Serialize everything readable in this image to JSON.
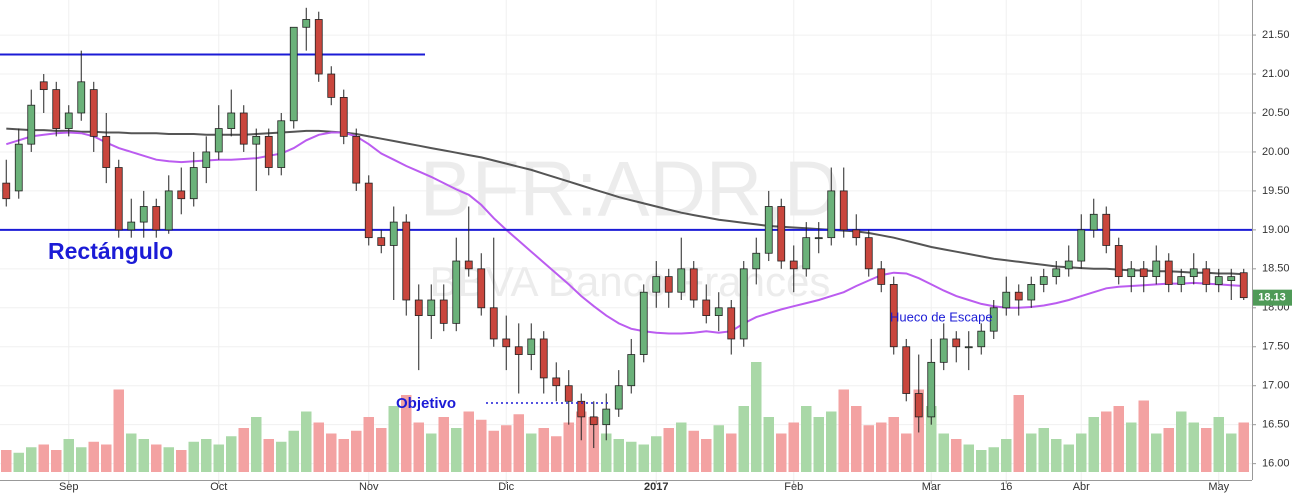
{
  "chart_data": {
    "type": "candlestick",
    "watermark": "BFR:ADR,D",
    "watermark_subtitle": "BBVA Banco Francés",
    "categories": [
      null,
      null,
      null,
      null,
      null,
      "Sep",
      null,
      null,
      null,
      null,
      null,
      null,
      null,
      null,
      null,
      null,
      null,
      "Oct",
      null,
      null,
      null,
      null,
      null,
      null,
      null,
      null,
      null,
      null,
      null,
      "Nov",
      null,
      null,
      null,
      null,
      null,
      null,
      null,
      null,
      null,
      null,
      "Dic",
      null,
      null,
      null,
      null,
      null,
      null,
      null,
      null,
      null,
      null,
      null,
      "2017",
      null,
      null,
      null,
      null,
      null,
      null,
      null,
      null,
      null,
      null,
      "Feb",
      null,
      null,
      null,
      null,
      null,
      null,
      null,
      null,
      null,
      null,
      "Mar",
      null,
      null,
      null,
      null,
      null,
      "16",
      null,
      null,
      null,
      null,
      null,
      "Abr",
      null,
      null,
      null,
      null,
      null,
      null,
      null,
      null,
      null,
      null,
      "May",
      null,
      null
    ],
    "open": [
      19.6,
      19.5,
      20.1,
      20.9,
      20.8,
      20.3,
      20.5,
      20.8,
      20.2,
      19.8,
      19.0,
      19.1,
      19.3,
      19.0,
      19.5,
      19.4,
      19.8,
      20.0,
      20.3,
      20.5,
      20.1,
      20.2,
      19.8,
      20.4,
      21.6,
      21.7,
      21.0,
      20.7,
      20.2,
      19.6,
      18.9,
      18.8,
      19.1,
      18.1,
      17.9,
      18.1,
      17.8,
      18.6,
      18.5,
      18.0,
      17.6,
      17.5,
      17.4,
      17.6,
      17.1,
      17.0,
      16.8,
      16.6,
      16.5,
      16.7,
      17.0,
      17.4,
      18.2,
      18.4,
      18.2,
      18.5,
      18.1,
      17.9,
      18.0,
      17.6,
      18.5,
      18.7,
      19.3,
      18.6,
      18.5,
      18.9,
      18.9,
      19.5,
      19.0,
      18.9,
      18.5,
      18.3,
      17.5,
      16.9,
      16.6,
      17.3,
      17.6,
      17.5,
      17.5,
      17.7,
      18.0,
      18.2,
      18.1,
      18.3,
      18.4,
      18.5,
      18.6,
      19.0,
      19.2,
      18.8,
      18.4,
      18.5,
      18.4,
      18.6,
      18.3,
      18.4,
      18.5,
      18.3,
      18.35,
      18.45
    ],
    "high": [
      19.9,
      20.3,
      20.8,
      21.0,
      20.9,
      20.6,
      21.3,
      20.9,
      20.5,
      19.9,
      19.4,
      19.5,
      19.4,
      19.7,
      19.8,
      20.0,
      20.2,
      20.6,
      20.8,
      20.6,
      20.3,
      20.3,
      20.5,
      21.6,
      21.85,
      21.8,
      21.1,
      20.8,
      20.3,
      19.7,
      19.0,
      19.3,
      19.2,
      18.3,
      18.3,
      18.3,
      18.9,
      19.3,
      18.7,
      18.9,
      17.9,
      17.8,
      17.8,
      17.7,
      17.3,
      17.2,
      16.9,
      16.8,
      16.9,
      17.2,
      17.6,
      18.3,
      18.6,
      18.5,
      18.9,
      18.6,
      18.3,
      18.2,
      18.1,
      18.6,
      18.9,
      19.5,
      19.4,
      18.8,
      19.1,
      19.1,
      19.8,
      19.8,
      19.2,
      19.0,
      18.6,
      18.4,
      17.6,
      17.4,
      17.6,
      17.8,
      17.7,
      17.7,
      17.8,
      18.1,
      18.4,
      18.3,
      18.4,
      18.5,
      18.6,
      18.8,
      19.2,
      19.4,
      19.3,
      18.9,
      18.6,
      18.6,
      18.8,
      18.7,
      18.5,
      18.7,
      18.6,
      18.5,
      18.5,
      18.5
    ],
    "low": [
      19.3,
      19.4,
      20.0,
      20.5,
      20.2,
      20.2,
      20.4,
      20.0,
      19.6,
      18.9,
      18.9,
      18.9,
      18.9,
      18.95,
      19.2,
      19.3,
      19.6,
      19.9,
      20.2,
      20.0,
      19.5,
      19.7,
      19.7,
      20.3,
      21.3,
      20.9,
      20.6,
      20.1,
      19.5,
      18.8,
      18.7,
      18.1,
      17.9,
      17.2,
      17.6,
      17.7,
      17.7,
      18.4,
      17.9,
      17.5,
      17.2,
      16.9,
      17.2,
      16.9,
      16.8,
      16.5,
      16.3,
      16.2,
      16.3,
      16.6,
      16.9,
      17.3,
      18.0,
      18.0,
      18.1,
      18.0,
      17.8,
      17.7,
      17.4,
      17.5,
      18.3,
      18.6,
      18.5,
      18.2,
      18.4,
      18.7,
      18.8,
      18.9,
      18.8,
      18.4,
      18.2,
      17.4,
      16.8,
      16.4,
      16.5,
      17.2,
      17.3,
      17.2,
      17.4,
      17.6,
      17.9,
      17.9,
      18.0,
      18.2,
      18.3,
      18.4,
      18.5,
      18.9,
      18.7,
      18.3,
      18.2,
      18.2,
      18.3,
      18.2,
      18.2,
      18.3,
      18.2,
      18.2,
      18.1,
      18.1
    ],
    "close": [
      19.4,
      20.1,
      20.6,
      20.8,
      20.3,
      20.5,
      20.9,
      20.2,
      19.8,
      19.0,
      19.1,
      19.3,
      19.0,
      19.5,
      19.4,
      19.8,
      20.0,
      20.3,
      20.5,
      20.1,
      20.2,
      19.8,
      20.4,
      21.6,
      21.7,
      21.0,
      20.7,
      20.2,
      19.6,
      18.9,
      18.8,
      19.1,
      18.1,
      17.9,
      18.1,
      17.8,
      18.6,
      18.5,
      18.0,
      17.6,
      17.5,
      17.4,
      17.6,
      17.1,
      17.0,
      16.8,
      16.6,
      16.5,
      16.7,
      17.0,
      17.4,
      18.2,
      18.4,
      18.2,
      18.5,
      18.1,
      17.9,
      18.0,
      17.6,
      18.5,
      18.7,
      19.3,
      18.6,
      18.5,
      18.9,
      18.9,
      19.5,
      19.0,
      18.9,
      18.5,
      18.3,
      17.5,
      16.9,
      16.6,
      17.3,
      17.6,
      17.5,
      17.5,
      17.7,
      18.0,
      18.2,
      18.1,
      18.3,
      18.4,
      18.5,
      18.6,
      19.0,
      19.2,
      18.8,
      18.4,
      18.5,
      18.4,
      18.6,
      18.3,
      18.4,
      18.5,
      18.3,
      18.4,
      18.4,
      18.13
    ],
    "volume": [
      8,
      7,
      9,
      10,
      8,
      12,
      9,
      11,
      10,
      30,
      14,
      12,
      10,
      9,
      8,
      11,
      12,
      10,
      13,
      16,
      20,
      12,
      11,
      15,
      22,
      18,
      14,
      12,
      15,
      20,
      16,
      24,
      28,
      18,
      14,
      20,
      16,
      22,
      19,
      15,
      17,
      21,
      14,
      16,
      13,
      18,
      22,
      20,
      14,
      12,
      11,
      10,
      13,
      16,
      18,
      15,
      12,
      17,
      14,
      24,
      40,
      20,
      14,
      18,
      24,
      20,
      22,
      30,
      24,
      17,
      18,
      20,
      14,
      30,
      24,
      14,
      12,
      10,
      8,
      9,
      12,
      28,
      14,
      16,
      12,
      10,
      14,
      20,
      22,
      24,
      18,
      26,
      14,
      16,
      22,
      18,
      16,
      20,
      14,
      18
    ],
    "up_color": "#6bb27a",
    "down_color": "#c9463d",
    "up_volume_color": "#a9d8a7",
    "down_volume_color": "#f3a2a2",
    "moving_averages": [
      {
        "color": "#555555",
        "values": [
          20.3,
          20.29,
          20.28,
          20.28,
          20.27,
          20.27,
          20.26,
          20.26,
          20.25,
          20.25,
          20.24,
          20.24,
          20.24,
          20.23,
          20.23,
          20.23,
          20.22,
          20.22,
          20.22,
          20.22,
          20.23,
          20.24,
          20.25,
          20.26,
          20.27,
          20.27,
          20.26,
          20.25,
          20.23,
          20.2,
          20.17,
          20.14,
          20.11,
          20.08,
          20.05,
          20.02,
          19.99,
          19.96,
          19.93,
          19.89,
          19.85,
          19.81,
          19.77,
          19.72,
          19.67,
          19.62,
          19.57,
          19.52,
          19.47,
          19.42,
          19.38,
          19.34,
          19.3,
          19.26,
          19.22,
          19.19,
          19.16,
          19.13,
          19.11,
          19.09,
          19.07,
          19.05,
          19.04,
          19.03,
          19.02,
          19.01,
          19.0,
          18.99,
          18.98,
          18.96,
          18.93,
          18.9,
          18.86,
          18.82,
          18.78,
          18.75,
          18.72,
          18.69,
          18.66,
          18.63,
          18.61,
          18.59,
          18.57,
          18.55,
          18.53,
          18.52,
          18.51,
          18.5,
          18.5,
          18.49,
          18.48,
          18.48,
          18.47,
          18.47,
          18.46,
          18.45,
          18.45,
          18.44,
          18.44,
          18.43
        ]
      },
      {
        "color": "#bb5cf0",
        "values": [
          20.1,
          20.15,
          20.2,
          20.22,
          20.24,
          20.25,
          20.24,
          20.2,
          20.12,
          20.05,
          20.0,
          19.95,
          19.9,
          19.88,
          19.87,
          19.88,
          19.89,
          19.9,
          19.9,
          19.91,
          19.92,
          19.95,
          19.98,
          20.05,
          20.15,
          20.22,
          20.25,
          20.25,
          20.2,
          20.1,
          19.98,
          19.9,
          19.82,
          19.75,
          19.68,
          19.6,
          19.52,
          19.45,
          19.32,
          19.15,
          19.0,
          18.86,
          18.72,
          18.58,
          18.44,
          18.3,
          18.15,
          18.02,
          17.9,
          17.8,
          17.73,
          17.7,
          17.68,
          17.67,
          17.67,
          17.68,
          17.7,
          17.68,
          17.7,
          17.8,
          17.88,
          17.93,
          17.98,
          18.02,
          18.06,
          18.1,
          18.15,
          18.2,
          18.28,
          18.35,
          18.42,
          18.45,
          18.44,
          18.38,
          18.3,
          18.22,
          18.15,
          18.1,
          18.05,
          18.02,
          18.0,
          18.0,
          18.01,
          18.03,
          18.06,
          18.1,
          18.15,
          18.2,
          18.25,
          18.27,
          18.28,
          18.29,
          18.3,
          18.31,
          18.31,
          18.32,
          18.31,
          18.3,
          18.29,
          18.28
        ]
      }
    ],
    "levels": [
      {
        "value": 21.25,
        "color": "#1b1bd6"
      },
      {
        "value": 19.0,
        "color": "#1b1bd6"
      }
    ],
    "annotations": {
      "rectangle": "Rectángulo",
      "target": "Objetivo",
      "gap": "Hueco de Escape"
    },
    "annotation_color": "#1b1bd6",
    "ylim": [
      15.79,
      21.95
    ],
    "yticks": [
      {
        "value": 16,
        "label": "16.00"
      },
      {
        "value": 16.5,
        "label": "16.50"
      },
      {
        "value": 17,
        "label": "17.00"
      },
      {
        "value": 17.5,
        "label": "17.50"
      },
      {
        "value": 18,
        "label": "18.00"
      },
      {
        "value": 18.5,
        "label": "18.50"
      },
      {
        "value": 19,
        "label": "19.00"
      },
      {
        "value": 19.5,
        "label": "19.50"
      },
      {
        "value": 20,
        "label": "20.00"
      },
      {
        "value": 20.5,
        "label": "20.50"
      },
      {
        "value": 21,
        "label": "21.00"
      },
      {
        "value": 21.5,
        "label": "21.50"
      }
    ],
    "grid": true
  }
}
